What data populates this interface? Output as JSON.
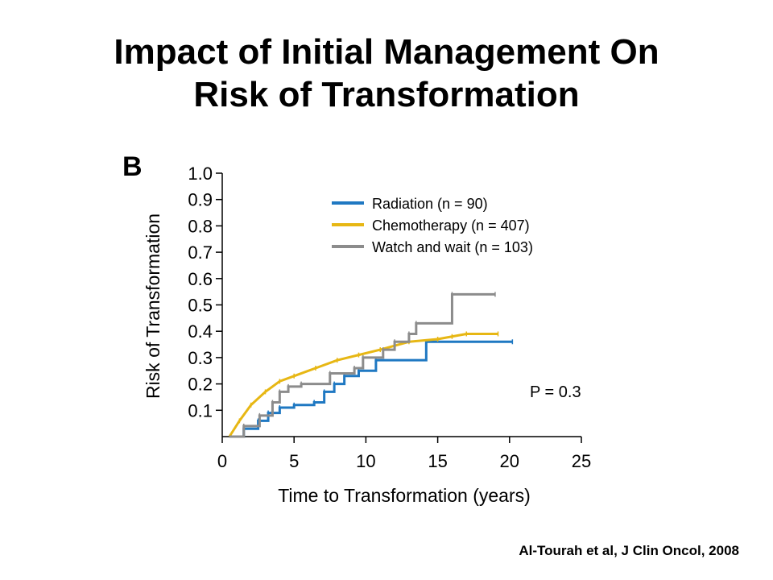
{
  "slide": {
    "title_line1": "Impact of Initial Management On",
    "title_line2": "Risk of Transformation",
    "citation": "Al-Tourah et al,  J Clin Oncol, 2008"
  },
  "chart_data": {
    "type": "line",
    "panel_label": "B",
    "xlabel": "Time to Transformation (years)",
    "ylabel": "Risk of Transformation",
    "xlim": [
      0,
      25
    ],
    "ylim": [
      0,
      1.0
    ],
    "x_ticks": [
      0,
      5,
      10,
      15,
      20,
      25
    ],
    "x_tick_labels": [
      "0",
      "5",
      "10",
      "15",
      "20",
      "25"
    ],
    "y_ticks": [
      0.1,
      0.2,
      0.3,
      0.4,
      0.5,
      0.6,
      0.7,
      0.8,
      0.9,
      1.0
    ],
    "y_tick_labels": [
      "0.1",
      "0.2",
      "0.3",
      "0.4",
      "0.5",
      "0.6",
      "0.7",
      "0.8",
      "0.9",
      "1.0"
    ],
    "grid": false,
    "legend_position": "top-right",
    "annotation": "P = 0.3",
    "series": [
      {
        "name": "Radiation (n = 90)",
        "color": "#1F78C2",
        "step": true,
        "points": [
          [
            0.5,
            0
          ],
          [
            1.5,
            0.03
          ],
          [
            2.5,
            0.06
          ],
          [
            3.2,
            0.09
          ],
          [
            4,
            0.11
          ],
          [
            5,
            0.12
          ],
          [
            6.4,
            0.13
          ],
          [
            7.1,
            0.17
          ],
          [
            7.8,
            0.2
          ],
          [
            8.5,
            0.23
          ],
          [
            9.5,
            0.25
          ],
          [
            10.7,
            0.29
          ],
          [
            14.2,
            0.36
          ],
          [
            20.2,
            0.36
          ]
        ]
      },
      {
        "name": "Chemotherapy (n = 407)",
        "color": "#E7B714",
        "step": false,
        "points": [
          [
            0.5,
            0
          ],
          [
            1.2,
            0.06
          ],
          [
            2,
            0.12
          ],
          [
            3,
            0.17
          ],
          [
            4,
            0.21
          ],
          [
            5,
            0.23
          ],
          [
            6.5,
            0.26
          ],
          [
            8,
            0.29
          ],
          [
            9.5,
            0.31
          ],
          [
            11,
            0.33
          ],
          [
            13,
            0.36
          ],
          [
            15,
            0.37
          ],
          [
            16,
            0.38
          ],
          [
            17,
            0.39
          ],
          [
            19.2,
            0.39
          ]
        ]
      },
      {
        "name": "Watch and wait (n = 103)",
        "color": "#8C8C8C",
        "step": true,
        "points": [
          [
            0.5,
            0
          ],
          [
            1.5,
            0.04
          ],
          [
            2.6,
            0.08
          ],
          [
            3.5,
            0.13
          ],
          [
            4,
            0.17
          ],
          [
            4.6,
            0.19
          ],
          [
            5.5,
            0.2
          ],
          [
            7.5,
            0.24
          ],
          [
            9.2,
            0.26
          ],
          [
            9.8,
            0.3
          ],
          [
            11.2,
            0.33
          ],
          [
            12,
            0.36
          ],
          [
            13,
            0.39
          ],
          [
            13.5,
            0.43
          ],
          [
            16,
            0.54
          ],
          [
            19,
            0.54
          ]
        ]
      }
    ]
  }
}
